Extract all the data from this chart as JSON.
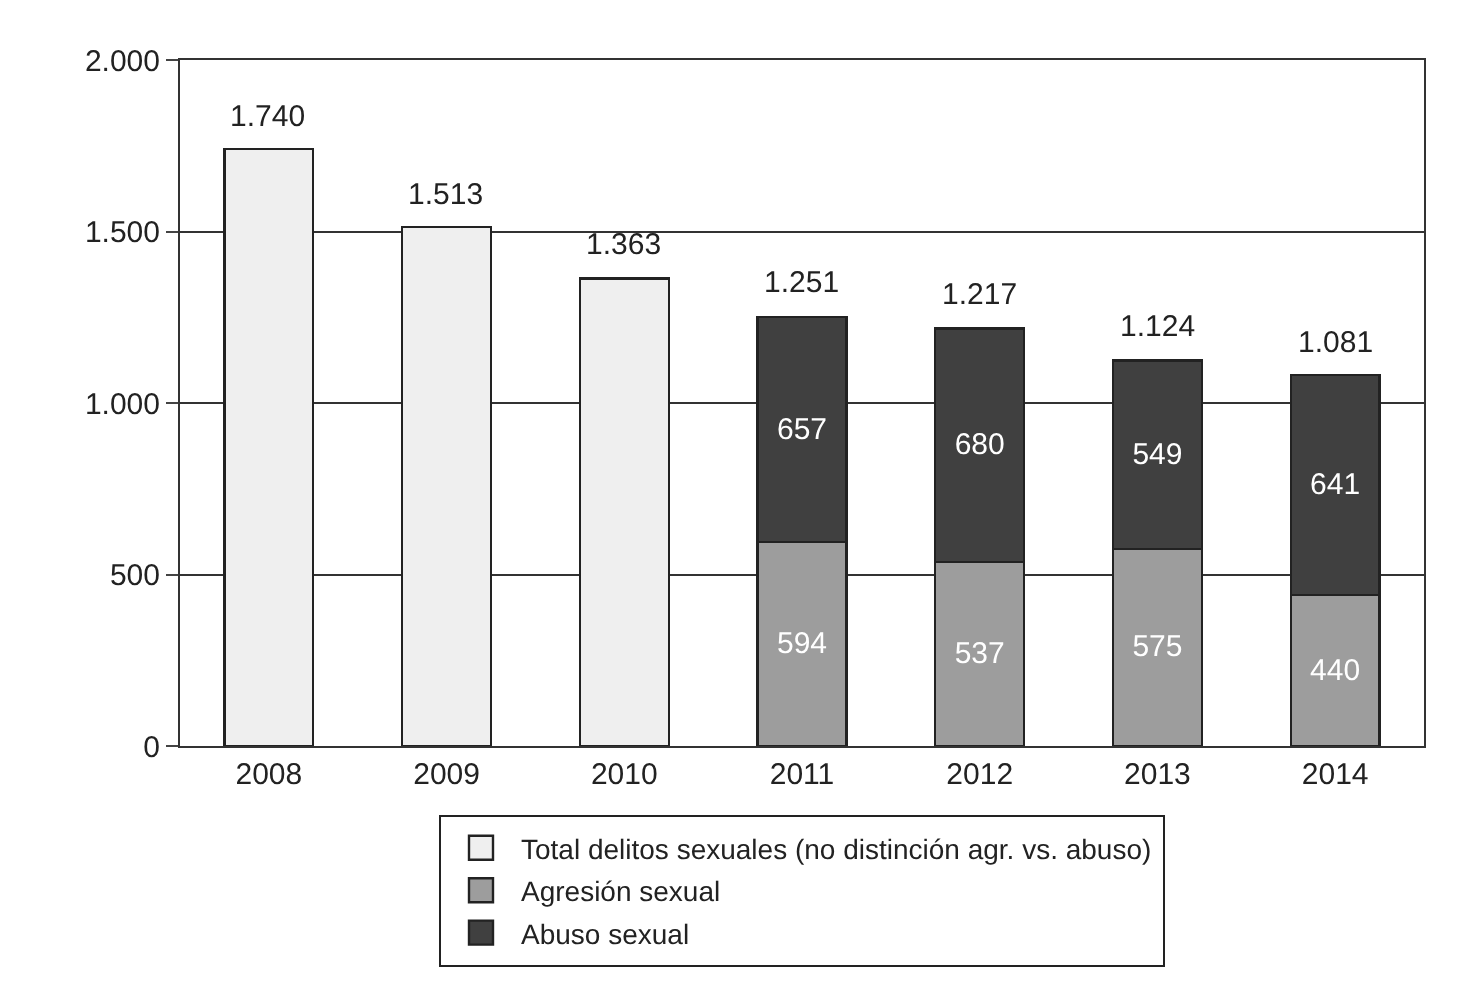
{
  "chart_data": {
    "type": "bar",
    "stacked": true,
    "categories": [
      "2008",
      "2009",
      "2010",
      "2011",
      "2012",
      "2013",
      "2014"
    ],
    "series": [
      {
        "name": "Total delitos sexuales (no distinción agr. vs. abuso)",
        "color": "#efefef",
        "values": [
          1740,
          1513,
          1363,
          null,
          null,
          null,
          null
        ],
        "value_labels": [
          null,
          null,
          null,
          null,
          null,
          null,
          null
        ]
      },
      {
        "name": "Agresión sexual",
        "color": "#9d9d9d",
        "values": [
          null,
          null,
          null,
          594,
          537,
          575,
          440
        ],
        "value_labels": [
          null,
          null,
          null,
          "594",
          "537",
          "575",
          "440"
        ]
      },
      {
        "name": "Abuso sexual",
        "color": "#404040",
        "values": [
          null,
          null,
          null,
          657,
          680,
          549,
          641
        ],
        "value_labels": [
          null,
          null,
          null,
          "657",
          "680",
          "549",
          "641"
        ]
      }
    ],
    "totals": [
      "1.740",
      "1.513",
      "1.363",
      "1.251",
      "1.217",
      "1.124",
      "1.081"
    ],
    "ylim": [
      0,
      2000
    ],
    "yticks": [
      {
        "value": 0,
        "label": "0"
      },
      {
        "value": 500,
        "label": "500"
      },
      {
        "value": 1000,
        "label": "1.000"
      },
      {
        "value": 1500,
        "label": "1.500"
      },
      {
        "value": 2000,
        "label": "2.000"
      }
    ],
    "grid": "y",
    "legend": "bottom"
  }
}
